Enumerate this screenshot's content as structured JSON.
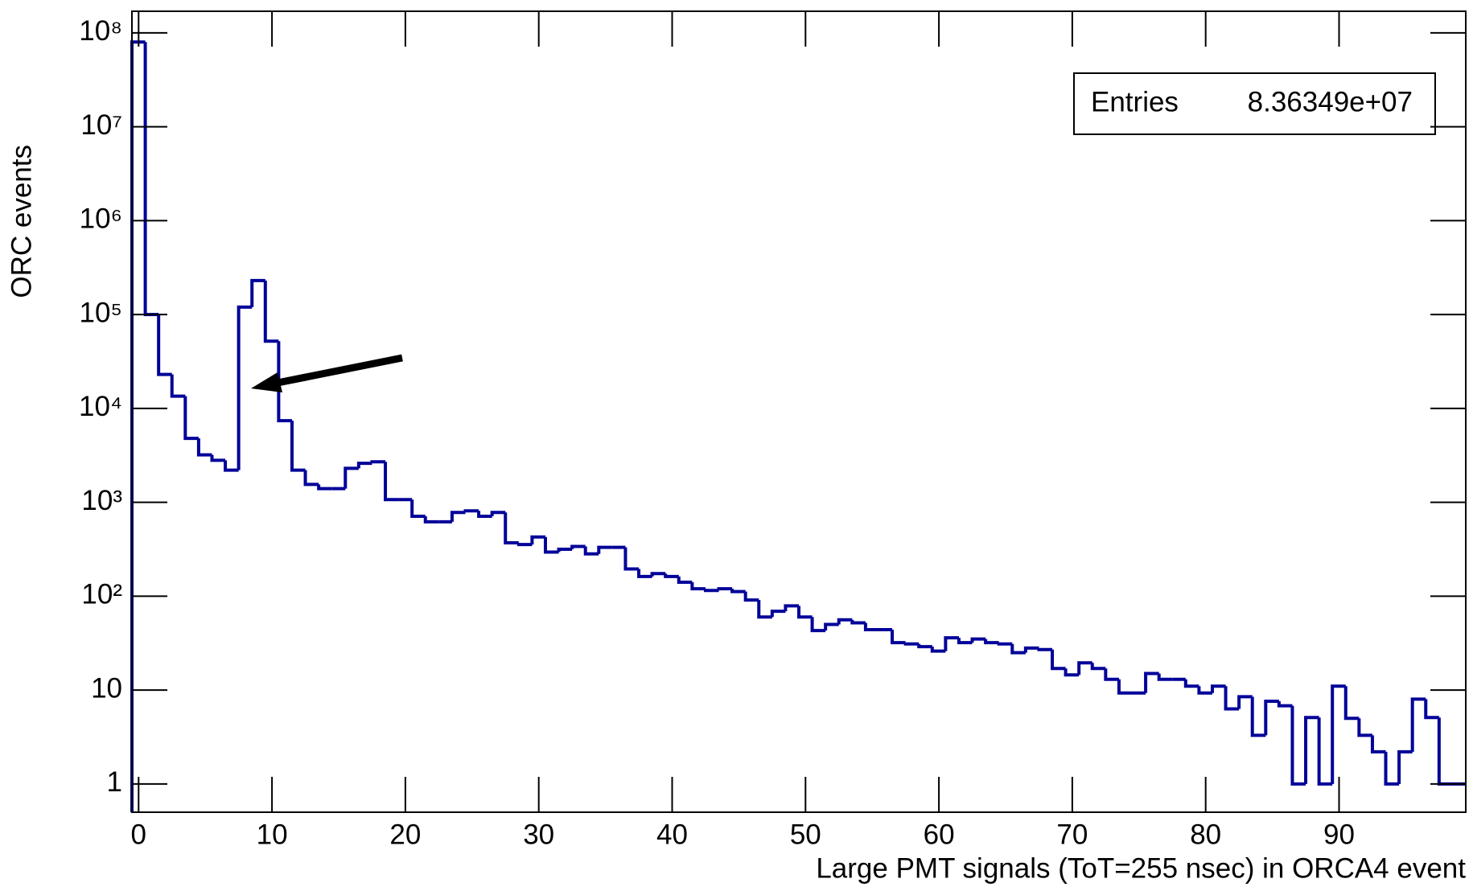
{
  "chart_data": {
    "type": "histogram",
    "x_label": "Large PMT signals (ToT=255 nsec) in ORCA4 event",
    "y_label": "ORC events",
    "stats": {
      "label": "Entries",
      "value": "8.36349e+07"
    },
    "color": "#000099",
    "log_y": true,
    "bins": [
      -0.5,
      0.5,
      1.5,
      2.5,
      3.5,
      4.5,
      5.5,
      6.5,
      7.5,
      8.5,
      9.5,
      10.5,
      11.5,
      12.5,
      13.5,
      14.5,
      15.5,
      16.5,
      17.5,
      18.5,
      19.5,
      20.5,
      21.5,
      22.5,
      23.5,
      24.5,
      25.5,
      26.5,
      27.5,
      28.5,
      29.5,
      30.5,
      31.5,
      32.5,
      33.5,
      34.5,
      35.5,
      36.5,
      37.5,
      38.5,
      39.5,
      40.5,
      41.5,
      42.5,
      43.5,
      44.5,
      45.5,
      46.5,
      47.5,
      48.5,
      49.5,
      50.5,
      51.5,
      52.5,
      53.5,
      54.5,
      55.5,
      56.5,
      57.5,
      58.5,
      59.5,
      60.5,
      61.5,
      62.5,
      63.5,
      64.5,
      65.5,
      66.5,
      67.5,
      68.5,
      69.5,
      70.5,
      71.5,
      72.5,
      73.5,
      74.5,
      75.5,
      76.5,
      77.5,
      78.5,
      79.5,
      80.5,
      81.5,
      82.5,
      83.5,
      84.5,
      85.5,
      86.5,
      87.5,
      88.5,
      89.5,
      90.5,
      91.5,
      92.5,
      93.5,
      94.5,
      95.5,
      96.5,
      97.5,
      98.5,
      99.5
    ],
    "values": [
      80000000,
      100000,
      23000,
      13500,
      4800,
      3200,
      2800,
      2200,
      120000,
      230000,
      52000,
      7400,
      2200,
      1550,
      1400,
      1400,
      2300,
      2600,
      2700,
      1070,
      1070,
      710,
      620,
      620,
      780,
      810,
      710,
      780,
      370,
      355,
      427,
      295,
      316,
      339,
      282,
      331,
      331,
      195,
      162,
      174,
      162,
      141,
      120,
      115,
      120,
      112,
      91,
      60,
      69,
      79,
      60,
      43,
      50,
      56,
      52,
      44,
      44,
      32,
      31,
      29,
      26,
      36,
      32,
      35,
      32,
      31,
      25,
      28,
      27,
      17,
      14.5,
      19.5,
      17,
      13,
      9.3,
      9.3,
      15,
      13,
      13,
      11,
      9.3,
      11,
      6.3,
      8.5,
      3.3,
      7.6,
      6.8,
      1,
      5.1,
      1,
      11,
      5,
      3.3,
      2.2,
      1,
      2.2,
      8,
      5.1,
      1,
      1
    ],
    "xlim": [
      -0.5,
      99.5
    ],
    "xticks": [
      0,
      10,
      20,
      30,
      40,
      50,
      60,
      70,
      80,
      90
    ],
    "ylim": [
      0.5,
      170000000
    ],
    "yticks": [
      1,
      10,
      {
        "value": 100,
        "label": "10²"
      },
      {
        "value": 1000,
        "label": "10³"
      },
      {
        "value": 10000,
        "label": "10⁴"
      },
      {
        "value": 100000,
        "label": "10⁵"
      },
      {
        "value": 1000000,
        "label": "10⁶"
      },
      {
        "value": 10000000,
        "label": "10⁷"
      },
      {
        "value": 100000000,
        "label": "10⁸"
      }
    ]
  }
}
